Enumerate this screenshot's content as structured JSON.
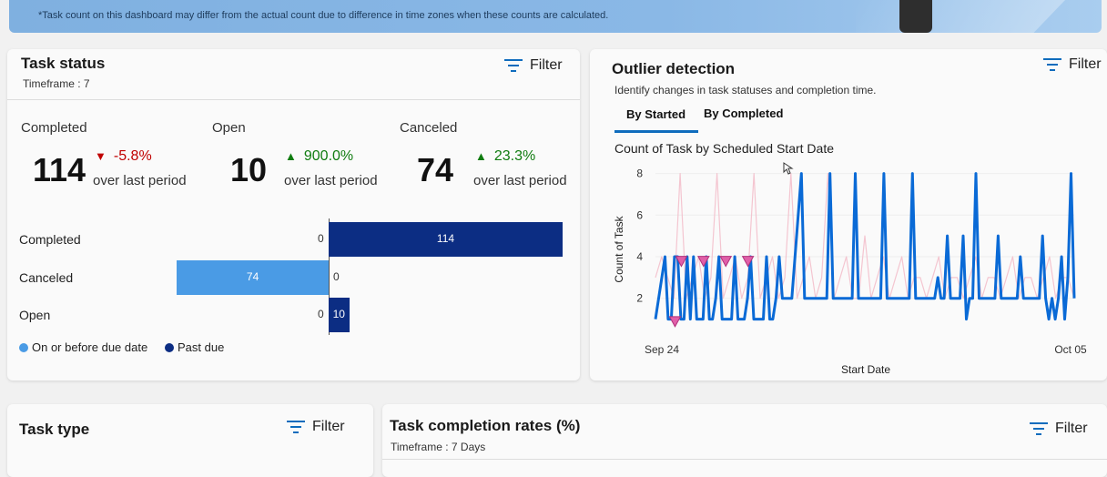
{
  "banner": {
    "note": "*Task count on this dashboard may differ from the actual count due to difference in time zones when these counts are calculated."
  },
  "task_status": {
    "title": "Task status",
    "timeframe": "Timeframe : 7",
    "filter_label": "Filter",
    "kpis": [
      {
        "label": "Completed",
        "value": "114",
        "delta": "-5.8%",
        "direction": "down",
        "caption": "over last period"
      },
      {
        "label": "Open",
        "value": "10",
        "delta": "900.0%",
        "direction": "up",
        "caption": "over last period"
      },
      {
        "label": "Canceled",
        "value": "74",
        "delta": "23.3%",
        "direction": "up",
        "caption": "over last period"
      }
    ],
    "bars": [
      {
        "label": "Completed",
        "on_time": 0,
        "past_due": 114,
        "on_time_text": "0",
        "past_due_text": "114"
      },
      {
        "label": "Canceled",
        "on_time": 74,
        "past_due": 0,
        "on_time_text": "74",
        "past_due_text": "0"
      },
      {
        "label": "Open",
        "on_time": 0,
        "past_due": 10,
        "on_time_text": "0",
        "past_due_text": "10"
      }
    ],
    "legend": [
      {
        "label": "On or before due date",
        "color": "#4a9be5"
      },
      {
        "label": "Past due",
        "color": "#0c2d83"
      }
    ]
  },
  "outlier": {
    "title": "Outlier detection",
    "subtitle": "Identify changes in task statuses and completion time.",
    "filter_label": "Filter",
    "tabs": [
      {
        "label": "By Started",
        "active": true
      },
      {
        "label": "By Completed",
        "active": false
      }
    ],
    "chart_title": "Count of Task by Scheduled Start Date"
  },
  "chart_data": {
    "type": "line",
    "title": "Count of Task by Scheduled Start Date",
    "xlabel": "Start Date",
    "ylabel": "Count of Task",
    "x_tick_labels": [
      "Sep 24",
      "Oct 05"
    ],
    "y_ticks": [
      2,
      4,
      6,
      8
    ],
    "ylim": [
      0.5,
      8.2
    ],
    "series": [
      {
        "color": "#0a6ad6",
        "values": [
          1,
          2,
          3,
          4,
          1,
          1,
          4,
          4,
          1,
          1,
          4,
          1,
          4,
          1,
          1,
          1,
          4,
          1,
          1,
          2,
          4,
          1,
          1,
          1,
          1,
          4,
          1,
          1,
          1,
          2,
          4,
          1,
          1,
          1,
          1,
          4,
          1,
          1,
          2,
          4,
          2,
          2,
          2,
          2,
          4,
          6,
          8,
          2,
          2,
          2,
          2,
          2,
          2,
          2,
          2,
          8,
          2,
          2,
          2,
          2,
          2,
          2,
          2,
          8,
          2,
          2,
          2,
          2,
          2,
          2,
          2,
          2,
          8,
          2,
          2,
          2,
          2,
          2,
          2,
          2,
          2,
          8,
          2,
          2,
          2,
          2,
          2,
          2,
          2,
          3,
          2,
          2,
          5,
          2,
          2,
          2,
          2,
          5,
          1,
          2,
          2,
          8,
          2,
          2,
          2,
          2,
          2,
          2,
          5,
          2,
          2,
          2,
          2,
          2,
          2,
          4,
          2,
          2,
          2,
          2,
          2,
          2,
          5,
          2,
          1,
          2,
          1,
          2,
          4,
          1,
          3,
          8,
          2
        ]
      },
      {
        "color": "#f2b8c6",
        "values": [
          3,
          4,
          3,
          2,
          8,
          2,
          3,
          4,
          2,
          3,
          8,
          2,
          3,
          4,
          2,
          3,
          8,
          2,
          3,
          4,
          2,
          3,
          8,
          2,
          3,
          4,
          2,
          3,
          8,
          2,
          3,
          4,
          2,
          2,
          5,
          2,
          3,
          4,
          2,
          3,
          4,
          2,
          3,
          3,
          2,
          3,
          4,
          2,
          3,
          3,
          2,
          3,
          4,
          2,
          3,
          3,
          2,
          3,
          4,
          2,
          3,
          3,
          2,
          3,
          4,
          2,
          3,
          3,
          2
        ]
      }
    ],
    "outlier_markers": [
      {
        "index": 3,
        "value": 3.8
      },
      {
        "index": 10,
        "value": 3.8
      },
      {
        "index": 17,
        "value": 3.8
      },
      {
        "index": 24,
        "value": 3.8
      },
      {
        "index": 1,
        "value": 0.9
      }
    ]
  },
  "task_type": {
    "title": "Task type",
    "filter_label": "Filter"
  },
  "completion_rates": {
    "title": "Task completion rates (%)",
    "timeframe": "Timeframe : 7 Days",
    "filter_label": "Filter"
  }
}
